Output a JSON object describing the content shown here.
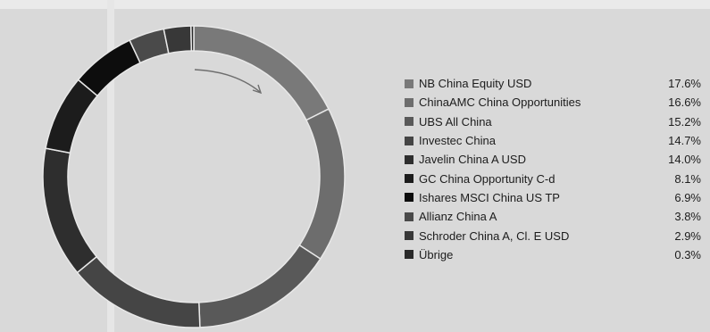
{
  "chart_data": {
    "type": "pie",
    "categories": [
      "NB China Equity USD",
      "ChinaAMC China Opportunities",
      "UBS All China",
      "Investec China",
      "Javelin China A USD",
      "GC China Opportunity C-d",
      "Ishares MSCI China US TP",
      "Allianz China A",
      "Schroder China A, Cl. E USD",
      "Übrige"
    ],
    "values": [
      17.6,
      16.6,
      15.2,
      14.7,
      14.0,
      8.1,
      6.9,
      3.8,
      2.9,
      0.3
    ],
    "value_labels": [
      "17.6%",
      "16.6%",
      "15.2%",
      "14.7%",
      "14.0%",
      "8.1%",
      "6.9%",
      "3.8%",
      "2.9%",
      "0.3%"
    ],
    "colors": [
      "#797979",
      "#6d6d6d",
      "#595959",
      "#454545",
      "#2e2e2e",
      "#1c1c1c",
      "#0d0d0d",
      "#4a4a4a",
      "#383838",
      "#2a2a2a"
    ],
    "legend_position": "right",
    "style": "donut",
    "direction": "clockwise"
  }
}
